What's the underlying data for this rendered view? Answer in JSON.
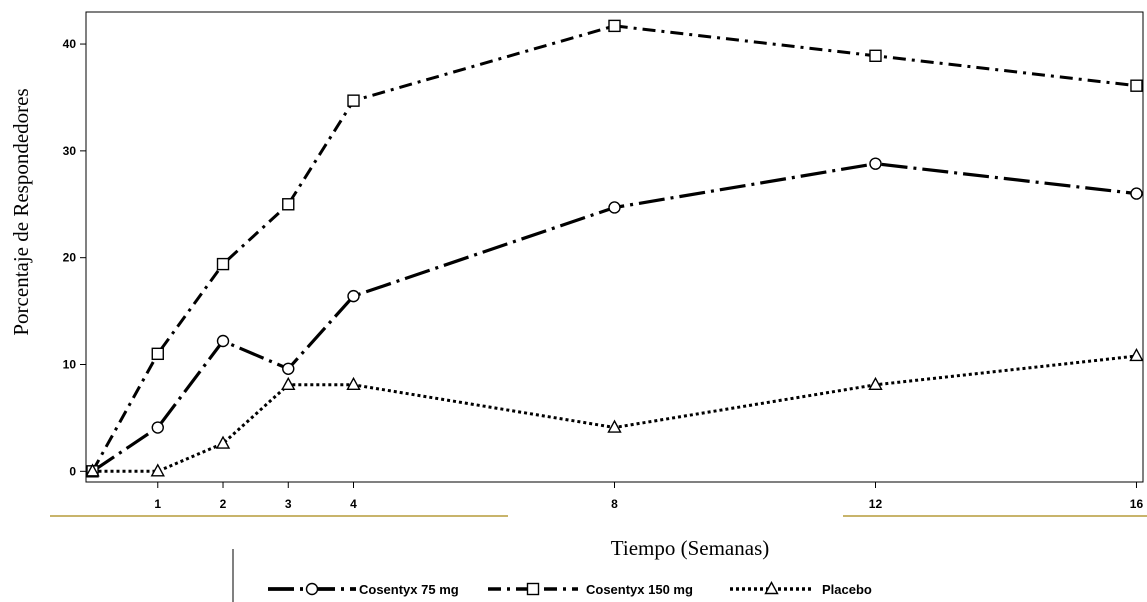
{
  "chart_data": {
    "type": "line",
    "xlabel": "Tiempo (Semanas)",
    "ylabel": "Porcentaje de Respondedores",
    "x": [
      0,
      1,
      2,
      3,
      4,
      8,
      12,
      16
    ],
    "x_tick_labels": [
      "1",
      "2",
      "3",
      "4",
      "8",
      "12",
      "16"
    ],
    "y_ticks": [
      0,
      10,
      20,
      30,
      40
    ],
    "xlim": [
      -0.1,
      16.1
    ],
    "ylim": [
      -1,
      43
    ],
    "grid": false,
    "legend_position": "bottom",
    "series": [
      {
        "name": "Cosentyx 75 mg",
        "marker": "circle",
        "line_style": "long-dash-dot-thick",
        "values": [
          0,
          4.1,
          12.2,
          9.6,
          16.4,
          24.7,
          28.8,
          26.0
        ]
      },
      {
        "name": "Cosentyx 150 mg",
        "marker": "square",
        "line_style": "dash-dot",
        "values": [
          0,
          11.0,
          19.4,
          25.0,
          34.7,
          41.7,
          38.9,
          36.1
        ]
      },
      {
        "name": "Placebo",
        "marker": "triangle",
        "line_style": "dotted",
        "values": [
          0,
          0,
          2.6,
          8.1,
          8.1,
          4.1,
          8.1,
          10.8
        ]
      }
    ]
  }
}
